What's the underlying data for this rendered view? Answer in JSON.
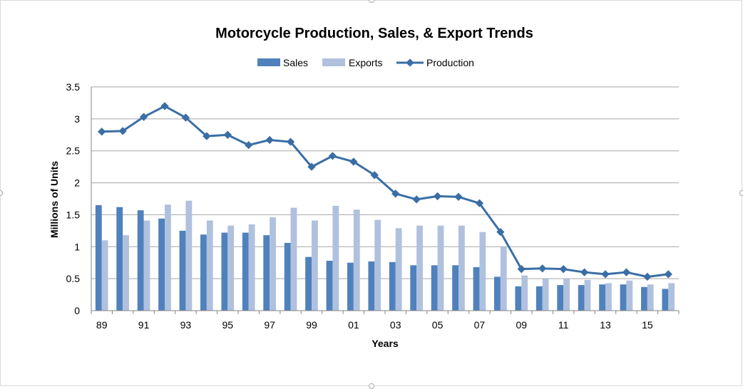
{
  "chart_data": {
    "type": "bar",
    "title": "Motorcycle Production, Sales, & Export Trends",
    "xlabel": "Years",
    "ylabel": "Millions of Units",
    "ylim": [
      0,
      3.5
    ],
    "yticks": [
      "0",
      "0.5",
      "1",
      "1.5",
      "2",
      "2.5",
      "3",
      "3.5"
    ],
    "grid": true,
    "legend_position": "top",
    "categories": [
      "89",
      "90",
      "91",
      "92",
      "93",
      "94",
      "95",
      "96",
      "97",
      "98",
      "99",
      "00",
      "01",
      "02",
      "03",
      "04",
      "05",
      "06",
      "07",
      "08",
      "09",
      "10",
      "11",
      "12",
      "13",
      "14",
      "15",
      "16"
    ],
    "x_tick_labels": [
      "89",
      "",
      "91",
      "",
      "93",
      "",
      "95",
      "",
      "97",
      "",
      "99",
      "",
      "01",
      "",
      "03",
      "",
      "05",
      "",
      "07",
      "",
      "09",
      "",
      "11",
      "",
      "13",
      "",
      "15",
      ""
    ],
    "series": [
      {
        "name": "Sales",
        "kind": "bar",
        "color": "#4f81bd",
        "values": [
          1.65,
          1.62,
          1.57,
          1.44,
          1.25,
          1.19,
          1.22,
          1.22,
          1.18,
          1.06,
          0.84,
          0.78,
          0.75,
          0.77,
          0.76,
          0.71,
          0.71,
          0.71,
          0.68,
          0.53,
          0.38,
          0.38,
          0.4,
          0.4,
          0.41,
          0.41,
          0.37,
          0.34
        ]
      },
      {
        "name": "Exports",
        "kind": "bar",
        "color": "#b0c1de",
        "values": [
          1.1,
          1.18,
          1.41,
          1.66,
          1.72,
          1.41,
          1.33,
          1.35,
          1.46,
          1.61,
          1.41,
          1.64,
          1.58,
          1.42,
          1.29,
          1.33,
          1.33,
          1.33,
          1.23,
          1.0,
          0.55,
          0.5,
          0.5,
          0.48,
          0.43,
          0.47,
          0.41,
          0.43
        ]
      },
      {
        "name": "Production",
        "kind": "line",
        "color": "#3a6ea5",
        "values": [
          2.8,
          2.81,
          3.03,
          3.2,
          3.02,
          2.73,
          2.75,
          2.59,
          2.67,
          2.64,
          2.25,
          2.42,
          2.33,
          2.12,
          1.83,
          1.74,
          1.79,
          1.78,
          1.68,
          1.23,
          0.65,
          0.66,
          0.65,
          0.6,
          0.57,
          0.6,
          0.53,
          0.57
        ]
      }
    ]
  }
}
